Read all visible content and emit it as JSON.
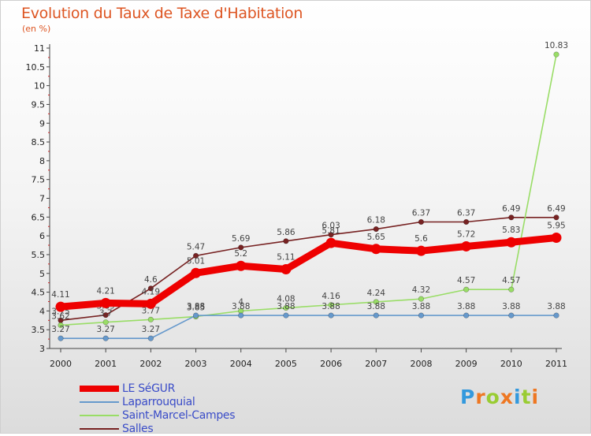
{
  "chart_data": {
    "type": "line",
    "title": "Evolution du Taux de Taxe d'Habitation",
    "subtitle": "(en %)",
    "x": [
      "2000",
      "2001",
      "2002",
      "2003",
      "2004",
      "2005",
      "2006",
      "2007",
      "2008",
      "2009",
      "2010",
      "2011"
    ],
    "ylim": [
      3,
      11
    ],
    "yticks": [
      "3",
      "3.5",
      "4",
      "4.5",
      "5",
      "5.5",
      "6",
      "6.5",
      "7",
      "7.5",
      "8",
      "8.5",
      "9",
      "9.5",
      "10",
      "10.5",
      "11"
    ],
    "grid": false,
    "legend_position": "bottom-left",
    "series": [
      {
        "name": "LE SéGUR",
        "color": "#ee0000",
        "values": [
          4.11,
          4.21,
          4.19,
          5.01,
          5.2,
          5.11,
          5.81,
          5.65,
          5.6,
          5.72,
          5.83,
          5.95
        ],
        "labels": [
          "4.11",
          "4.21",
          "4.19",
          "5.01",
          "5.2",
          "5.11",
          "5.81",
          "5.65",
          "5.6",
          "5.72",
          "5.83",
          "5.95"
        ]
      },
      {
        "name": "Laparrouquial",
        "color": "#6699cc",
        "values": [
          3.27,
          3.27,
          3.27,
          3.88,
          3.88,
          3.88,
          3.88,
          3.88,
          3.88,
          3.88,
          3.88,
          3.88
        ],
        "labels": [
          "3.27",
          "3.27",
          "3.27",
          "3.88",
          "3.88",
          "3.88",
          "3.88",
          "3.88",
          "3.88",
          "3.88",
          "3.88",
          "3.88"
        ]
      },
      {
        "name": "Saint-Marcel-Campes",
        "color": "#99dd66",
        "values": [
          3.62,
          3.7,
          3.77,
          3.85,
          4.0,
          4.08,
          4.16,
          4.24,
          4.32,
          4.57,
          4.57,
          10.83
        ],
        "labels": [
          "3.62",
          "3.7",
          "3.77",
          "3.85",
          "4",
          "4.08",
          "4.16",
          "4.24",
          "4.32",
          "4.57",
          "4.57",
          "10.83"
        ]
      },
      {
        "name": "Salles",
        "color": "#772222",
        "values": [
          3.75,
          3.89,
          4.6,
          5.47,
          5.69,
          5.86,
          6.03,
          6.18,
          6.37,
          6.37,
          6.49,
          6.49
        ],
        "labels": [
          "3.75",
          "3.89",
          "4.6",
          "5.47",
          "5.69",
          "5.86",
          "6.03",
          "6.18",
          "6.37",
          "6.37",
          "6.49",
          "6.49"
        ]
      }
    ]
  },
  "brand": {
    "letters": [
      "P",
      "r",
      "o",
      "x",
      "i",
      "t",
      "i"
    ],
    "colors": [
      "#3399dd",
      "#ee7722",
      "#99cc33",
      "#ee7722",
      "#3399dd",
      "#99cc33",
      "#ee7722"
    ]
  }
}
